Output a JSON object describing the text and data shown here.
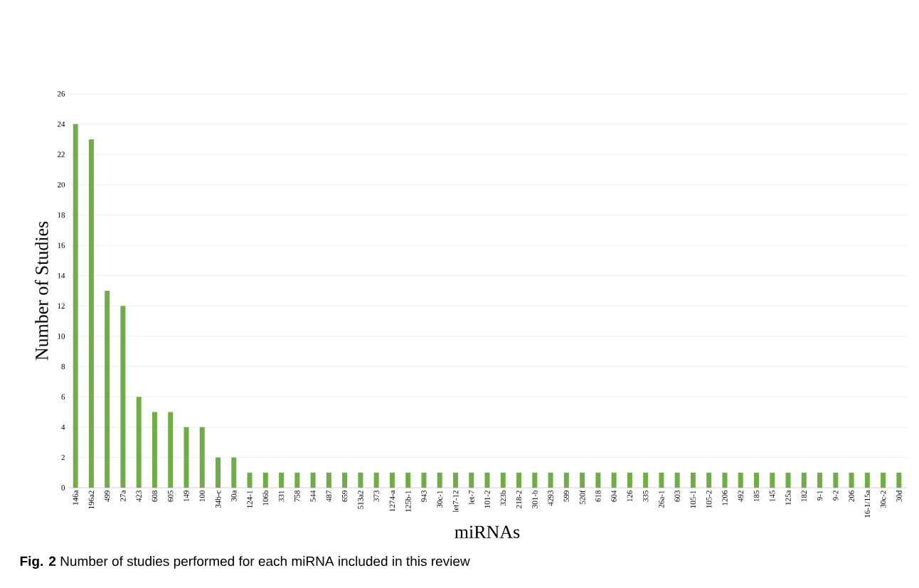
{
  "chart_data": {
    "type": "bar",
    "xlabel": "miRNAs",
    "ylabel": "Number of Studies",
    "categories": [
      "146a",
      "196a2",
      "499",
      "27a",
      "423",
      "608",
      "605",
      "149",
      "100",
      "34b-c",
      "30a",
      "124-1",
      "106b",
      "331",
      "758",
      "544",
      "487",
      "659",
      "513a2",
      "373",
      "1274-a",
      "125b-1",
      "943",
      "30c-1",
      "let7-12",
      "let-7",
      "101-2",
      "323b",
      "218-2",
      "301-b",
      "4293",
      "599",
      "520f",
      "618",
      "604",
      "126",
      "335",
      "26a-1",
      "603",
      "105-1",
      "105-2",
      "1206",
      "492",
      "185",
      "145",
      "125a",
      "182",
      "9-1",
      "9-2",
      "206",
      "16-1/15a",
      "30c-2",
      "30d"
    ],
    "values": [
      24,
      23,
      13,
      12,
      6,
      5,
      5,
      4,
      4,
      2,
      2,
      1,
      1,
      1,
      1,
      1,
      1,
      1,
      1,
      1,
      1,
      1,
      1,
      1,
      1,
      1,
      1,
      1,
      1,
      1,
      1,
      1,
      1,
      1,
      1,
      1,
      1,
      1,
      1,
      1,
      1,
      1,
      1,
      1,
      1,
      1,
      1,
      1,
      1,
      1,
      1,
      1,
      1
    ],
    "color": "#70ad47",
    "ylim": [
      0,
      26
    ],
    "yticks": [
      0,
      2,
      4,
      6,
      8,
      10,
      12,
      14,
      16,
      18,
      20,
      22,
      24,
      26
    ],
    "grid": "y",
    "annotations": [
      "**Fig. 2** Number of studies performed for each miRNA included in this review"
    ]
  }
}
